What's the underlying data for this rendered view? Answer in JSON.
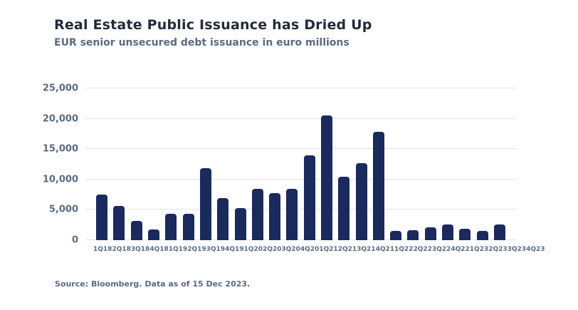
{
  "header": {
    "title": "Real Estate Public Issuance has Dried Up",
    "subtitle": "EUR senior unsecured debt issuance in euro millions"
  },
  "chart_data": {
    "type": "bar",
    "title": "Real Estate Public Issuance has Dried Up",
    "subtitle": "EUR senior unsecured debt issuance in euro millions",
    "xlabel": "",
    "ylabel": "",
    "categories": [
      "1Q18",
      "2Q18",
      "3Q18",
      "4Q18",
      "1Q19",
      "2Q19",
      "3Q19",
      "4Q19",
      "1Q20",
      "2Q20",
      "3Q20",
      "4Q20",
      "1Q21",
      "2Q21",
      "3Q21",
      "4Q21",
      "1Q22",
      "2Q22",
      "3Q22",
      "4Q22",
      "1Q23",
      "2Q23",
      "3Q23",
      "4Q23"
    ],
    "values": [
      7500,
      5600,
      3200,
      1800,
      4300,
      4300,
      11900,
      6900,
      5300,
      8400,
      7800,
      8400,
      14000,
      20600,
      10400,
      12700,
      17900,
      1500,
      1600,
      2100,
      2600,
      1900,
      1500,
      2600
    ],
    "ylim": [
      0,
      25000
    ],
    "yticks": [
      0,
      5000,
      10000,
      15000,
      20000,
      25000
    ],
    "ytick_labels": [
      "0",
      "5,000",
      "10,000",
      "15,000",
      "20,000",
      "25,000"
    ],
    "grid": true,
    "legend": false,
    "bar_color": "#1a2a5c"
  },
  "footer": {
    "source": "Source: Bloomberg. Data as of 15 Dec 2023."
  },
  "colors": {
    "title": "#222b38",
    "slate_text": "#5b6b80",
    "bar": "#1a2a5c",
    "gridline": "#e1e3e6",
    "background": "#ffffff"
  }
}
